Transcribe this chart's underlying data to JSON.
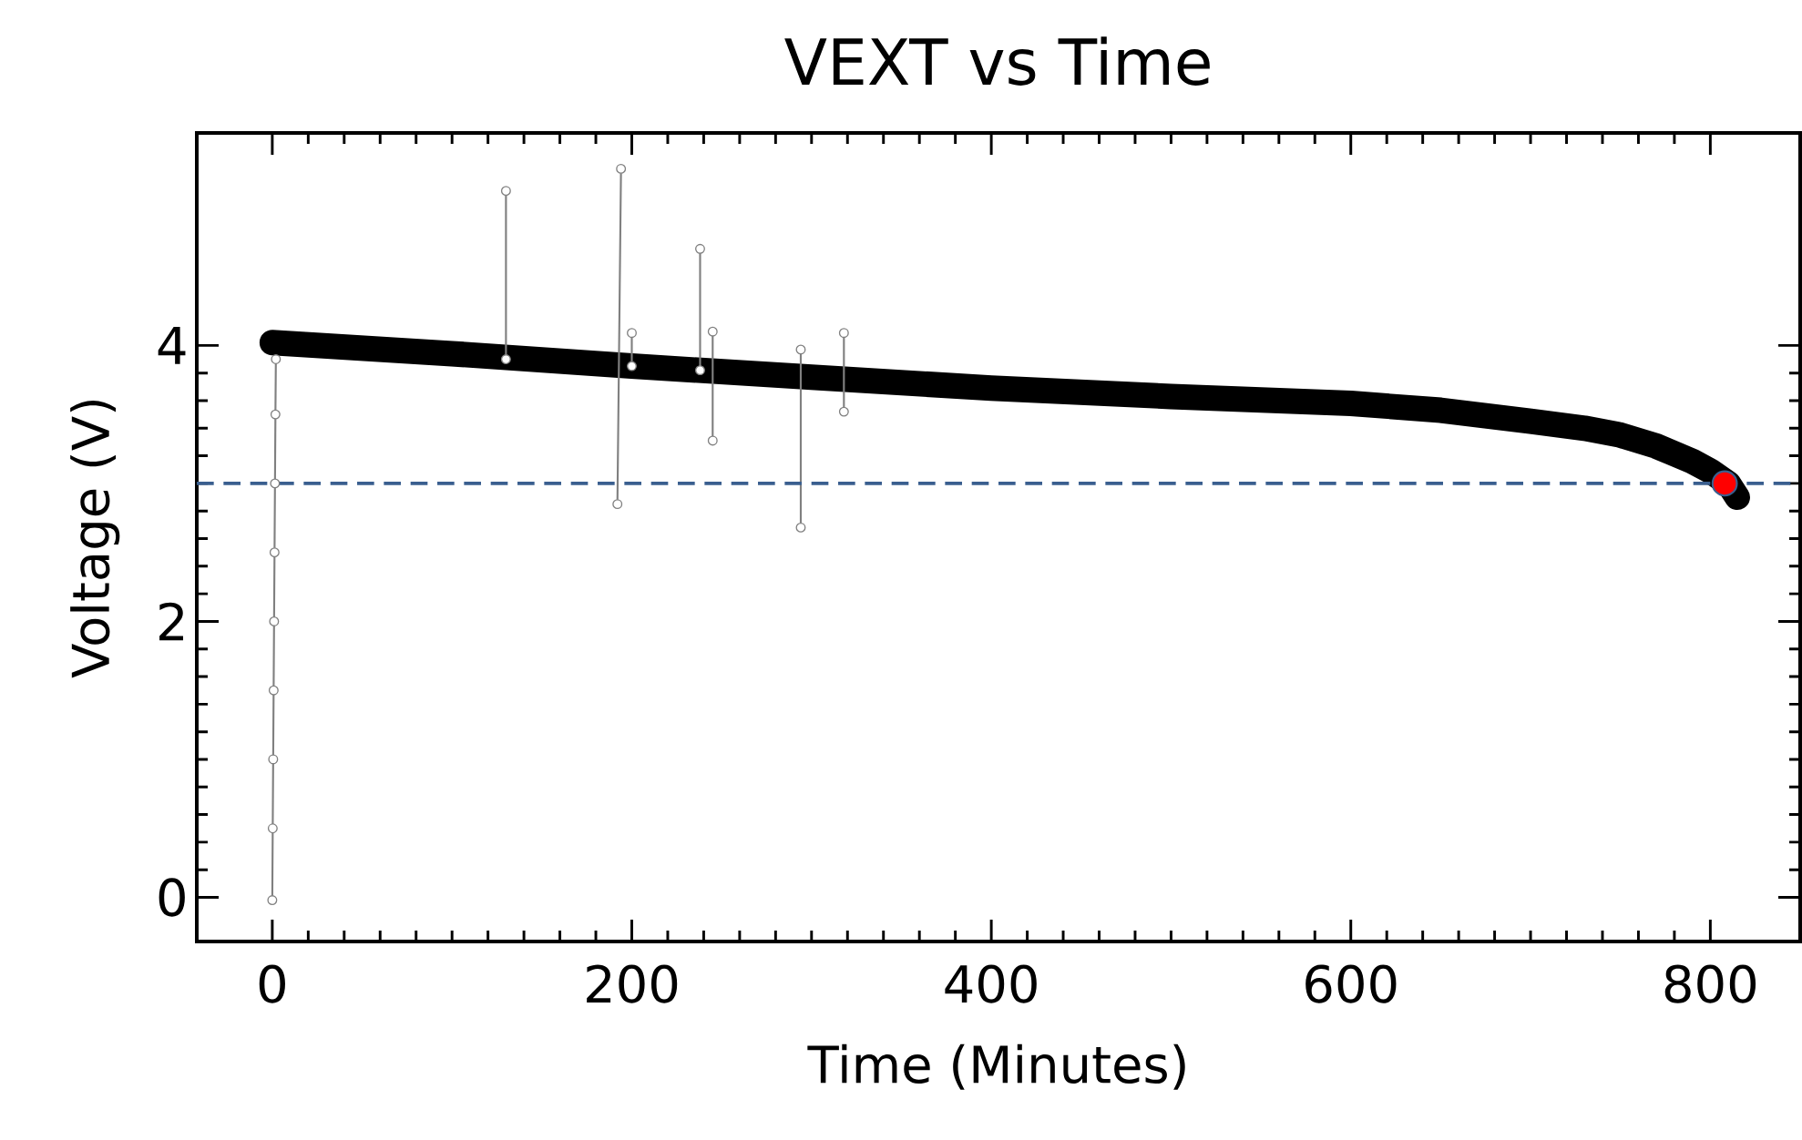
{
  "chart_data": {
    "type": "line",
    "title": "VEXT vs Time",
    "xlabel": "Time (Minutes)",
    "ylabel": "Voltage (V)",
    "xlim": [
      -42,
      850
    ],
    "ylim": [
      -0.32,
      5.54
    ],
    "xticks": [
      0,
      200,
      400,
      600,
      800
    ],
    "yticks": [
      0,
      2,
      4
    ],
    "series": [
      {
        "color": "#000000",
        "x": [
          0,
          100,
          200,
          300,
          400,
          500,
          600,
          650,
          700,
          730,
          750,
          770,
          790,
          800,
          810,
          815
        ],
        "values": [
          4.02,
          3.94,
          3.85,
          3.77,
          3.69,
          3.63,
          3.58,
          3.53,
          3.45,
          3.4,
          3.35,
          3.27,
          3.16,
          3.09,
          3.0,
          2.9
        ]
      },
      {
        "color": "#808080",
        "marker": "circle",
        "x": [
          0,
          0.25,
          0.5,
          0.75,
          1,
          1.25,
          1.5,
          1.75,
          2
        ],
        "values": [
          -0.02,
          0.5,
          1.0,
          1.5,
          2.0,
          2.5,
          3.0,
          3.5,
          3.9
        ]
      },
      {
        "color": "#808080",
        "marker": "circle",
        "x": [
          130,
          130,
          null,
          192,
          194,
          null,
          200,
          200,
          null,
          238,
          238,
          null,
          245,
          245,
          null,
          294,
          294,
          null,
          318,
          318
        ],
        "values": [
          3.9,
          5.12,
          null,
          2.85,
          5.28,
          null,
          3.85,
          4.09,
          null,
          3.82,
          4.7,
          null,
          3.31,
          4.1,
          null,
          2.68,
          3.97,
          null,
          3.52,
          4.09
        ]
      },
      {
        "type": "scatter",
        "color": "#ff0000",
        "marker": "circle",
        "x": [
          808
        ],
        "values": [
          3.0
        ]
      }
    ],
    "ref_lines": [
      {
        "axis": "y",
        "value": 3,
        "color": "#3a5f8f",
        "line_style": "dashed"
      }
    ]
  }
}
